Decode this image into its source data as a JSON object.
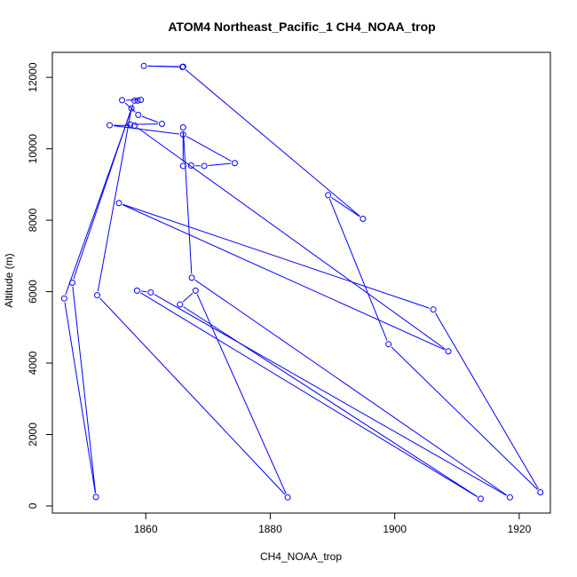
{
  "chart_data": {
    "type": "line",
    "title": "ATOM4 Northeast_Pacific_1 CH4_NOAA_trop",
    "xlabel": "CH4_NOAA_trop",
    "ylabel": "Altitude (m)",
    "xlim": [
      1845,
      1925
    ],
    "ylim": [
      -200,
      12700
    ],
    "xticks": [
      1860,
      1880,
      1900,
      1920
    ],
    "yticks": [
      0,
      2000,
      4000,
      6000,
      8000,
      10000,
      12000
    ],
    "grid": false,
    "marker": "open-circle",
    "colors": {
      "series": "#0000ff",
      "axis": "#000000"
    },
    "series": [
      {
        "x": [
          1866.0,
          1859.7,
          1865.9,
          1894.9,
          1889.3,
          1899.0,
          1923.4,
          1906.2,
          1855.7,
          1908.6,
          1858.2,
          1854.2,
          1866.0,
          1874.3,
          1869.4,
          1867.3,
          1866.0,
          1866.0,
          1867.4,
          1918.5,
          1860.8,
          1858.6,
          1913.8,
          1865.5,
          1868.0,
          1882.8,
          1852.2,
          1857.7,
          1848.2,
          1852.0,
          1846.9,
          1858.2,
          1858.7,
          1859.2,
          1856.2,
          1858.8,
          1862.6,
          1857.5
        ],
        "y": [
          12300,
          12320,
          12290,
          8040,
          8700,
          4530,
          380,
          5500,
          8480,
          4330,
          10650,
          10660,
          10400,
          9600,
          9520,
          9530,
          9520,
          10600,
          6390,
          240,
          5980,
          6030,
          200,
          5640,
          6030,
          240,
          5900,
          11130,
          6250,
          250,
          5810,
          11350,
          11350,
          11370,
          11360,
          10950,
          10700,
          10680
        ]
      }
    ]
  }
}
